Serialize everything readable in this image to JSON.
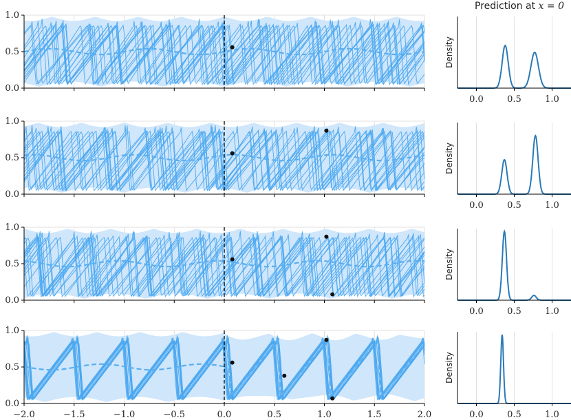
{
  "title": "Prediction at x = 0",
  "title_plain": "Prediction at ",
  "title_math": "x = 0",
  "colors": {
    "band": "#cfe6fb",
    "samples": "#4aa7f0",
    "mean": "#5aaff0",
    "density": "#2a7ab8",
    "points": "#111111",
    "grid": "#d9d9d9",
    "axis": "#000000"
  },
  "chart_data": [
    {
      "type": "line",
      "row": 1,
      "xlim": [
        -2.0,
        2.0
      ],
      "ylim": [
        0.0,
        1.0
      ],
      "xticks": [
        -2.0,
        -1.5,
        -1.0,
        -0.5,
        0.0,
        0.5,
        1.0,
        1.5,
        2.0
      ],
      "yticks": [
        0.0,
        0.5,
        1.0
      ],
      "ytick_labels": [
        "0.0",
        "0.5",
        "1.0"
      ],
      "xtick_labels": [],
      "vline_x": 0.0,
      "observations": [
        {
          "x": 0.08,
          "y": 0.56
        }
      ],
      "period": 0.5,
      "amplitude_range": [
        0.05,
        0.95
      ],
      "grid": true
    },
    {
      "type": "line",
      "row": 2,
      "xlim": [
        -2.0,
        2.0
      ],
      "ylim": [
        0.0,
        1.0
      ],
      "xticks": [
        -2.0,
        -1.5,
        -1.0,
        -0.5,
        0.0,
        0.5,
        1.0,
        1.5,
        2.0
      ],
      "yticks": [
        0.0,
        0.5,
        1.0
      ],
      "ytick_labels": [
        "0.0",
        "0.5",
        "1.0"
      ],
      "xtick_labels": [],
      "vline_x": 0.0,
      "observations": [
        {
          "x": 0.08,
          "y": 0.56
        },
        {
          "x": 1.02,
          "y": 0.87
        }
      ],
      "period": 0.5,
      "amplitude_range": [
        0.05,
        0.95
      ],
      "grid": true
    },
    {
      "type": "line",
      "row": 3,
      "xlim": [
        -2.0,
        2.0
      ],
      "ylim": [
        0.0,
        1.0
      ],
      "xticks": [
        -2.0,
        -1.5,
        -1.0,
        -0.5,
        0.0,
        0.5,
        1.0,
        1.5,
        2.0
      ],
      "yticks": [
        0.0,
        0.5,
        1.0
      ],
      "ytick_labels": [
        "0.0",
        "0.5",
        "1.0"
      ],
      "xtick_labels": [],
      "vline_x": 0.0,
      "observations": [
        {
          "x": 0.08,
          "y": 0.56
        },
        {
          "x": 1.02,
          "y": 0.87
        },
        {
          "x": 1.08,
          "y": 0.08
        }
      ],
      "period": 0.5,
      "amplitude_range": [
        0.05,
        0.95
      ],
      "grid": true
    },
    {
      "type": "line",
      "row": 4,
      "xlim": [
        -2.0,
        2.0
      ],
      "ylim": [
        0.0,
        1.0
      ],
      "xticks": [
        -2.0,
        -1.5,
        -1.0,
        -0.5,
        0.0,
        0.5,
        1.0,
        1.5,
        2.0
      ],
      "yticks": [
        0.0,
        0.5,
        1.0
      ],
      "ytick_labels": [
        "0.0",
        "0.5",
        "1.0"
      ],
      "xtick_labels": [
        "−2.0",
        "−1.5",
        "−1.0",
        "−0.5",
        "0.0",
        "0.5",
        "1.0",
        "1.5",
        "2.0"
      ],
      "vline_x": 0.0,
      "observations": [
        {
          "x": 0.08,
          "y": 0.56
        },
        {
          "x": 0.6,
          "y": 0.38
        },
        {
          "x": 1.02,
          "y": 0.87
        },
        {
          "x": 1.08,
          "y": 0.07
        }
      ],
      "period": 0.5,
      "amplitude_range": [
        0.05,
        0.95
      ],
      "grid": true
    },
    {
      "type": "area",
      "row": 1,
      "ylabel": "Density",
      "xlim": [
        -0.25,
        1.25
      ],
      "xticks": [
        0.0,
        0.5,
        1.0
      ],
      "xtick_labels": [
        "0.0",
        "0.5",
        "1.0"
      ],
      "peaks": [
        {
          "mu": 0.38,
          "sigma": 0.04,
          "height": 0.62
        },
        {
          "mu": 0.77,
          "sigma": 0.05,
          "height": 0.52
        }
      ],
      "grid": true
    },
    {
      "type": "area",
      "row": 2,
      "ylabel": "Density",
      "xlim": [
        -0.25,
        1.25
      ],
      "xticks": [
        0.0,
        0.5,
        1.0
      ],
      "xtick_labels": [
        "0.0",
        "0.5",
        "1.0"
      ],
      "peaks": [
        {
          "mu": 0.37,
          "sigma": 0.035,
          "height": 0.5
        },
        {
          "mu": 0.78,
          "sigma": 0.035,
          "height": 0.85
        }
      ],
      "grid": true
    },
    {
      "type": "area",
      "row": 3,
      "ylabel": "Density",
      "xlim": [
        -0.25,
        1.25
      ],
      "xticks": [
        0.0,
        0.5,
        1.0
      ],
      "xtick_labels": [
        "0.0",
        "0.5",
        "1.0"
      ],
      "peaks": [
        {
          "mu": 0.37,
          "sigma": 0.028,
          "height": 1.0
        },
        {
          "mu": 0.76,
          "sigma": 0.03,
          "height": 0.07
        }
      ],
      "grid": true
    },
    {
      "type": "area",
      "row": 4,
      "ylabel": "Density",
      "xlim": [
        -0.25,
        1.25
      ],
      "xticks": [
        0.0,
        0.5,
        1.0
      ],
      "xtick_labels": [
        "0.0",
        "0.5",
        "1.0"
      ],
      "peaks": [
        {
          "mu": 0.34,
          "sigma": 0.018,
          "height": 1.0
        }
      ],
      "grid": true
    }
  ]
}
